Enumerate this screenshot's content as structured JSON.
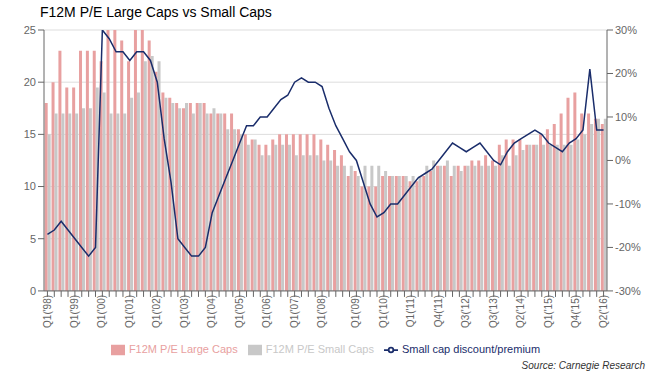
{
  "chart_data": {
    "type": "bar",
    "title": "F12M P/E Large Caps vs Small Caps",
    "source": "Source: Carnegie Research",
    "categories": [
      "Q1('98)",
      null,
      null,
      null,
      "Q1('99)",
      null,
      null,
      null,
      "Q1('00)",
      null,
      null,
      null,
      "Q1('01)",
      null,
      null,
      null,
      "Q1('02)",
      null,
      null,
      null,
      "Q1('03)",
      null,
      null,
      null,
      "Q1('04)",
      null,
      null,
      null,
      "Q1('05)",
      null,
      null,
      null,
      "Q1('06)",
      null,
      null,
      null,
      "Q1('07)",
      null,
      null,
      null,
      "Q1('08)",
      null,
      null,
      null,
      null,
      "Q1('09)",
      null,
      null,
      null,
      "Q1('10)",
      null,
      null,
      null,
      "Q1('11)",
      null,
      null,
      null,
      "Q4('11)",
      null,
      null,
      null,
      "Q3('12)",
      null,
      null,
      null,
      "Q3('13)",
      null,
      null,
      null,
      "Q2('14)",
      null,
      null,
      null,
      "Q1('15)",
      null,
      null,
      null,
      "Q4('15)",
      null,
      null,
      null,
      "Q2('16)"
    ],
    "series": [
      {
        "name": "F12M P/E Large Caps",
        "type": "bar",
        "color": "#e8a0a0",
        "values": [
          18.0,
          20.0,
          23.0,
          19.5,
          19.5,
          23.0,
          23.0,
          23.0,
          22.0,
          25.0,
          25.0,
          24.0,
          22.0,
          25.0,
          25.0,
          24.0,
          21.0,
          19.0,
          18.5,
          18.0,
          17.5,
          18.0,
          18.0,
          18.0,
          17.0,
          17.0,
          17.0,
          17.0,
          15.5,
          15.0,
          14.5,
          14.0,
          14.0,
          14.5,
          15.0,
          15.0,
          15.0,
          15.0,
          15.0,
          15.0,
          14.5,
          14.0,
          13.5,
          13.0,
          11.0,
          11.5,
          10.0,
          10.0,
          10.0,
          11.0,
          11.0,
          11.0,
          11.0,
          10.5,
          10.5,
          11.0,
          11.5,
          12.0,
          12.0,
          11.0,
          12.0,
          12.0,
          12.5,
          12.5,
          13.0,
          12.5,
          14.0,
          14.5,
          14.5,
          14.5,
          14.0,
          14.0,
          15.0,
          15.5,
          16.0,
          17.0,
          18.5,
          19.0,
          17.0,
          17.0,
          16.5,
          16.0
        ]
      },
      {
        "name": "F12M P/E Small Caps",
        "type": "bar",
        "color": "#c8c8c8",
        "values": [
          15.0,
          17.0,
          17.0,
          17.0,
          17.0,
          17.5,
          17.5,
          19.5,
          19.0,
          17.0,
          17.0,
          17.0,
          18.5,
          19.0,
          22.0,
          22.5,
          22.0,
          18.5,
          18.0,
          17.5,
          18.0,
          17.0,
          18.0,
          17.0,
          17.5,
          17.0,
          15.5,
          15.5,
          15.0,
          14.0,
          14.5,
          13.0,
          13.0,
          14.0,
          14.0,
          14.0,
          13.0,
          13.0,
          13.0,
          13.0,
          12.5,
          12.5,
          12.0,
          12.0,
          12.0,
          11.0,
          12.0,
          12.0,
          12.0,
          11.5,
          11.0,
          11.0,
          11.0,
          11.0,
          11.0,
          12.0,
          12.5,
          12.0,
          12.5,
          12.0,
          11.5,
          12.0,
          12.0,
          12.0,
          12.0,
          12.0,
          13.0,
          12.0,
          13.0,
          13.5,
          14.0,
          14.0,
          14.0,
          14.0,
          14.0,
          14.0,
          14.0,
          14.5,
          15.0,
          16.0,
          16.5,
          16.5
        ]
      },
      {
        "name": "Small cap discount/premium",
        "type": "line",
        "axis": "y2",
        "color": "#1a2d6b",
        "values": [
          -17.0,
          -16.0,
          -14.0,
          -16.0,
          -18.0,
          -20.0,
          -22.0,
          -20.0,
          30.0,
          28.0,
          25.0,
          25.0,
          23.0,
          25.0,
          25.0,
          23.0,
          18.0,
          5.0,
          -5.0,
          -18.0,
          -20.0,
          -22.0,
          -22.0,
          -20.0,
          -12.0,
          -8.0,
          -4.0,
          0.0,
          4.0,
          8.0,
          8.0,
          10.0,
          10.0,
          12.0,
          14.0,
          15.0,
          18.0,
          19.0,
          18.0,
          18.0,
          17.0,
          12.0,
          8.0,
          5.0,
          2.0,
          0.0,
          -5.0,
          -10.0,
          -13.0,
          -12.0,
          -10.0,
          -10.0,
          -8.0,
          -6.0,
          -4.0,
          -3.0,
          -2.0,
          0.0,
          2.0,
          4.0,
          3.0,
          2.0,
          3.0,
          4.0,
          2.0,
          0.0,
          -1.0,
          2.0,
          4.0,
          5.0,
          6.0,
          7.0,
          6.0,
          4.0,
          3.0,
          2.0,
          4.0,
          5.0,
          7.0,
          21.0,
          7.0,
          7.0
        ]
      }
    ],
    "ylim": [
      0,
      25
    ],
    "yticks": [
      0,
      5,
      10,
      15,
      20,
      25
    ],
    "y2lim": [
      -30,
      30
    ],
    "y2ticks": [
      {
        "value": -30,
        "label": "-30%"
      },
      {
        "value": -20,
        "label": "-20%"
      },
      {
        "value": -10,
        "label": "-10%"
      },
      {
        "value": 0,
        "label": "0%"
      },
      {
        "value": 10,
        "label": "10%"
      },
      {
        "value": 20,
        "label": "20%"
      },
      {
        "value": 30,
        "label": "30%"
      }
    ],
    "grid": true,
    "legend": "bottom"
  }
}
